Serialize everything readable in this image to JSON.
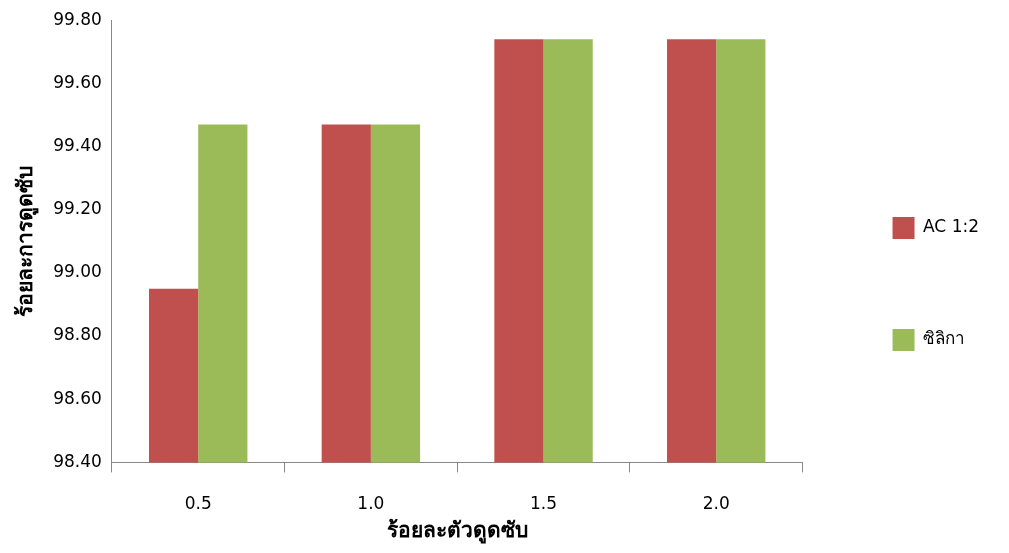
{
  "chart_data": {
    "type": "bar",
    "xlabel": "ร้อยละตัวดูดซับ",
    "ylabel": "ร้อยละการดูดซับ",
    "categories": [
      "0.5",
      "1.0",
      "1.5",
      "2.0"
    ],
    "series": [
      {
        "name": "AC 1:2",
        "color": "#c0504d",
        "values": [
          98.95,
          99.47,
          99.74,
          99.74
        ]
      },
      {
        "name": "ซิลิกา",
        "color": "#9bbb59",
        "values": [
          99.47,
          99.47,
          99.74,
          99.74
        ]
      }
    ],
    "ylim": [
      98.4,
      99.8
    ],
    "yticks": [
      {
        "value": 98.4,
        "label": "98.40"
      },
      {
        "value": 98.6,
        "label": "98.60"
      },
      {
        "value": 98.8,
        "label": "98.80"
      },
      {
        "value": 99.0,
        "label": "99.00"
      },
      {
        "value": 99.2,
        "label": "99.20"
      },
      {
        "value": 99.4,
        "label": "99.40"
      },
      {
        "value": 99.6,
        "label": "99.60"
      },
      {
        "value": 99.8,
        "label": "99.80"
      }
    ],
    "legend": "right",
    "grid": false
  }
}
